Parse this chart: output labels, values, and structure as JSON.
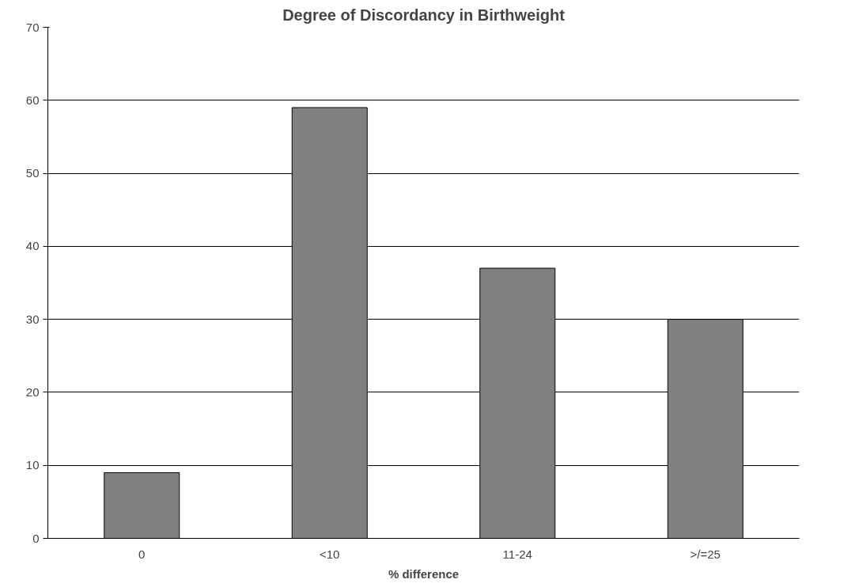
{
  "chart_data": {
    "type": "bar",
    "title": "Degree of Discordancy in Birthweight",
    "xlabel": "% difference",
    "categories": [
      "0",
      "<10",
      "11-24",
      ">/=25"
    ],
    "series": [
      {
        "color": "#808080",
        "values": [
          9,
          59,
          37,
          30
        ]
      }
    ],
    "ylim": [
      0,
      70
    ],
    "yticks": [
      0,
      10,
      20,
      30,
      40,
      50,
      60,
      70
    ],
    "grid": "y"
  }
}
